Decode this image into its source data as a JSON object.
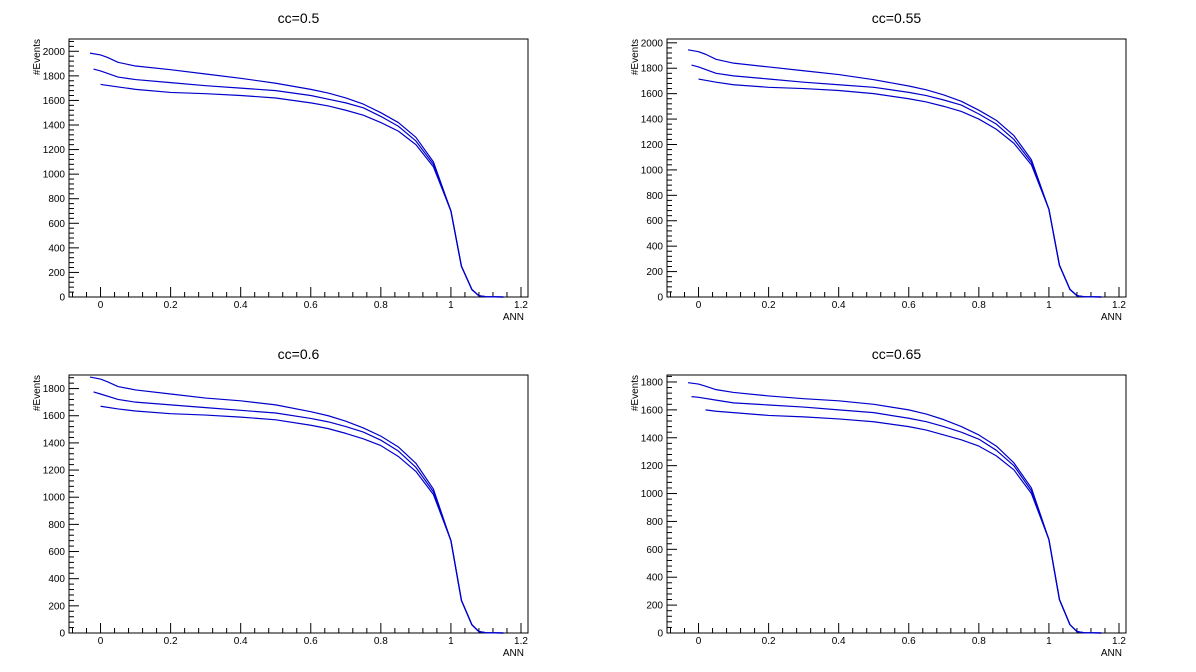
{
  "chart_data": [
    {
      "type": "line",
      "title": "cc=0.5",
      "xlabel": "ANN",
      "ylabel": "#Events",
      "xlim": [
        -0.09,
        1.22
      ],
      "ylim": [
        0,
        2100
      ],
      "xticks": [
        0,
        0.2,
        0.4,
        0.6,
        0.8,
        1,
        1.2
      ],
      "xtick_labels": [
        "0",
        "0.2",
        "0.4",
        "0.6",
        "0.8",
        "1",
        "1.2"
      ],
      "yticks": [
        0,
        200,
        400,
        600,
        800,
        1000,
        1200,
        1400,
        1600,
        1800,
        2000
      ],
      "ytick_labels": [
        "0",
        "200",
        "400",
        "600",
        "800",
        "1000",
        "1200",
        "1400",
        "1600",
        "1800",
        "2000"
      ],
      "grid": false,
      "line_color": "#0000cc",
      "series": [
        {
          "x": [
            -0.03,
            0.0,
            0.02,
            0.05,
            0.1,
            0.2,
            0.3,
            0.4,
            0.5,
            0.6,
            0.65,
            0.7,
            0.75,
            0.8,
            0.85,
            0.9,
            0.95,
            1.0,
            1.03,
            1.06,
            1.08,
            1.1,
            1.15
          ],
          "y": [
            1985,
            1970,
            1950,
            1910,
            1880,
            1850,
            1815,
            1780,
            1740,
            1690,
            1660,
            1620,
            1570,
            1500,
            1420,
            1300,
            1100,
            700,
            250,
            60,
            10,
            2,
            0
          ]
        },
        {
          "x": [
            -0.02,
            0.0,
            0.05,
            0.1,
            0.2,
            0.3,
            0.4,
            0.5,
            0.6,
            0.65,
            0.7,
            0.75,
            0.8,
            0.85,
            0.9,
            0.95,
            1.0,
            1.03,
            1.06,
            1.08,
            1.1,
            1.15
          ],
          "y": [
            1855,
            1840,
            1790,
            1770,
            1745,
            1720,
            1700,
            1680,
            1640,
            1610,
            1580,
            1540,
            1470,
            1390,
            1270,
            1080,
            700,
            250,
            60,
            10,
            2,
            0
          ]
        },
        {
          "x": [
            0.0,
            0.05,
            0.1,
            0.2,
            0.3,
            0.4,
            0.5,
            0.6,
            0.65,
            0.7,
            0.75,
            0.8,
            0.85,
            0.9,
            0.95,
            1.0,
            1.03,
            1.06,
            1.08,
            1.1,
            1.15
          ],
          "y": [
            1730,
            1710,
            1690,
            1665,
            1655,
            1640,
            1620,
            1580,
            1555,
            1520,
            1480,
            1420,
            1350,
            1240,
            1060,
            700,
            250,
            60,
            10,
            2,
            0
          ]
        }
      ]
    },
    {
      "type": "line",
      "title": "cc=0.55",
      "xlabel": "ANN",
      "ylabel": "#Events",
      "xlim": [
        -0.09,
        1.22
      ],
      "ylim": [
        0,
        2030
      ],
      "xticks": [
        0,
        0.2,
        0.4,
        0.6,
        0.8,
        1,
        1.2
      ],
      "xtick_labels": [
        "0",
        "0.2",
        "0.4",
        "0.6",
        "0.8",
        "1",
        "1.2"
      ],
      "yticks": [
        0,
        200,
        400,
        600,
        800,
        1000,
        1200,
        1400,
        1600,
        1800,
        2000
      ],
      "ytick_labels": [
        "0",
        "200",
        "400",
        "600",
        "800",
        "1000",
        "1200",
        "1400",
        "1600",
        "1800",
        "2000"
      ],
      "grid": false,
      "line_color": "#0000cc",
      "series": [
        {
          "x": [
            -0.03,
            0.0,
            0.02,
            0.05,
            0.1,
            0.2,
            0.3,
            0.4,
            0.5,
            0.6,
            0.65,
            0.7,
            0.75,
            0.8,
            0.85,
            0.9,
            0.95,
            1.0,
            1.03,
            1.06,
            1.08,
            1.1,
            1.15
          ],
          "y": [
            1945,
            1930,
            1910,
            1870,
            1840,
            1810,
            1780,
            1750,
            1710,
            1660,
            1630,
            1590,
            1540,
            1470,
            1390,
            1270,
            1080,
            690,
            250,
            60,
            10,
            2,
            0
          ]
        },
        {
          "x": [
            -0.02,
            0.0,
            0.05,
            0.1,
            0.2,
            0.3,
            0.4,
            0.5,
            0.6,
            0.65,
            0.7,
            0.75,
            0.8,
            0.85,
            0.9,
            0.95,
            1.0,
            1.03,
            1.06,
            1.08,
            1.1,
            1.15
          ],
          "y": [
            1825,
            1810,
            1760,
            1740,
            1715,
            1690,
            1670,
            1650,
            1610,
            1585,
            1550,
            1510,
            1440,
            1360,
            1240,
            1060,
            690,
            250,
            60,
            10,
            2,
            0
          ]
        },
        {
          "x": [
            0.0,
            0.05,
            0.1,
            0.2,
            0.3,
            0.4,
            0.5,
            0.6,
            0.65,
            0.7,
            0.75,
            0.8,
            0.85,
            0.9,
            0.95,
            1.0,
            1.03,
            1.06,
            1.08,
            1.1,
            1.15
          ],
          "y": [
            1715,
            1690,
            1670,
            1650,
            1640,
            1625,
            1600,
            1560,
            1535,
            1500,
            1460,
            1400,
            1320,
            1210,
            1040,
            690,
            250,
            60,
            10,
            2,
            0
          ]
        }
      ]
    },
    {
      "type": "line",
      "title": "cc=0.6",
      "xlabel": "ANN",
      "ylabel": "#Events",
      "xlim": [
        -0.09,
        1.22
      ],
      "ylim": [
        0,
        1900
      ],
      "xticks": [
        0,
        0.2,
        0.4,
        0.6,
        0.8,
        1,
        1.2
      ],
      "xtick_labels": [
        "0",
        "0.2",
        "0.4",
        "0.6",
        "0.8",
        "1",
        "1.2"
      ],
      "yticks": [
        0,
        200,
        400,
        600,
        800,
        1000,
        1200,
        1400,
        1600,
        1800
      ],
      "ytick_labels": [
        "0",
        "200",
        "400",
        "600",
        "800",
        "1000",
        "1200",
        "1400",
        "1600",
        "1800"
      ],
      "grid": false,
      "line_color": "#0000cc",
      "series": [
        {
          "x": [
            -0.03,
            0.0,
            0.02,
            0.05,
            0.1,
            0.2,
            0.3,
            0.4,
            0.5,
            0.6,
            0.65,
            0.7,
            0.75,
            0.8,
            0.85,
            0.9,
            0.95,
            1.0,
            1.03,
            1.06,
            1.08,
            1.1,
            1.15
          ],
          "y": [
            1885,
            1870,
            1850,
            1815,
            1790,
            1760,
            1730,
            1710,
            1680,
            1630,
            1600,
            1560,
            1510,
            1450,
            1370,
            1250,
            1060,
            680,
            240,
            60,
            10,
            2,
            0
          ]
        },
        {
          "x": [
            -0.02,
            0.0,
            0.05,
            0.1,
            0.2,
            0.3,
            0.4,
            0.5,
            0.6,
            0.65,
            0.7,
            0.75,
            0.8,
            0.85,
            0.9,
            0.95,
            1.0,
            1.03,
            1.06,
            1.08,
            1.1,
            1.15
          ],
          "y": [
            1775,
            1760,
            1720,
            1700,
            1680,
            1660,
            1640,
            1620,
            1580,
            1555,
            1520,
            1480,
            1420,
            1340,
            1220,
            1040,
            680,
            240,
            60,
            10,
            2,
            0
          ]
        },
        {
          "x": [
            0.0,
            0.05,
            0.1,
            0.2,
            0.3,
            0.4,
            0.5,
            0.6,
            0.65,
            0.7,
            0.75,
            0.8,
            0.85,
            0.9,
            0.95,
            1.0,
            1.03,
            1.06,
            1.08,
            1.1,
            1.15
          ],
          "y": [
            1670,
            1650,
            1635,
            1615,
            1605,
            1590,
            1570,
            1530,
            1505,
            1470,
            1430,
            1380,
            1300,
            1190,
            1020,
            680,
            240,
            60,
            10,
            2,
            0
          ]
        }
      ]
    },
    {
      "type": "line",
      "title": "cc=0.65",
      "xlabel": "ANN",
      "ylabel": "#Events",
      "xlim": [
        -0.09,
        1.22
      ],
      "ylim": [
        0,
        1850
      ],
      "xticks": [
        0,
        0.2,
        0.4,
        0.6,
        0.8,
        1,
        1.2
      ],
      "xtick_labels": [
        "0",
        "0.2",
        "0.4",
        "0.6",
        "0.8",
        "1",
        "1.2"
      ],
      "yticks": [
        0,
        200,
        400,
        600,
        800,
        1000,
        1200,
        1400,
        1600,
        1800
      ],
      "ytick_labels": [
        "0",
        "200",
        "400",
        "600",
        "800",
        "1000",
        "1200",
        "1400",
        "1600",
        "1800"
      ],
      "grid": false,
      "line_color": "#0000cc",
      "series": [
        {
          "x": [
            -0.03,
            0.0,
            0.02,
            0.05,
            0.1,
            0.2,
            0.3,
            0.4,
            0.5,
            0.6,
            0.65,
            0.7,
            0.75,
            0.8,
            0.85,
            0.9,
            0.95,
            1.0,
            1.03,
            1.06,
            1.08,
            1.1,
            1.15
          ],
          "y": [
            1795,
            1785,
            1770,
            1745,
            1725,
            1700,
            1680,
            1665,
            1640,
            1600,
            1570,
            1530,
            1480,
            1420,
            1340,
            1220,
            1040,
            670,
            240,
            60,
            10,
            2,
            0
          ]
        },
        {
          "x": [
            -0.02,
            0.0,
            0.05,
            0.1,
            0.2,
            0.3,
            0.4,
            0.5,
            0.6,
            0.65,
            0.7,
            0.75,
            0.8,
            0.85,
            0.9,
            0.95,
            1.0,
            1.03,
            1.06,
            1.08,
            1.1,
            1.15
          ],
          "y": [
            1695,
            1690,
            1670,
            1650,
            1635,
            1620,
            1600,
            1580,
            1540,
            1515,
            1480,
            1440,
            1390,
            1310,
            1200,
            1020,
            670,
            240,
            60,
            10,
            2,
            0
          ]
        },
        {
          "x": [
            0.02,
            0.05,
            0.1,
            0.2,
            0.3,
            0.4,
            0.5,
            0.6,
            0.65,
            0.7,
            0.75,
            0.8,
            0.85,
            0.9,
            0.95,
            1.0,
            1.03,
            1.06,
            1.08,
            1.1,
            1.15
          ],
          "y": [
            1600,
            1590,
            1580,
            1560,
            1550,
            1535,
            1515,
            1480,
            1455,
            1420,
            1385,
            1340,
            1270,
            1170,
            1000,
            670,
            240,
            60,
            10,
            2,
            0
          ]
        }
      ]
    }
  ]
}
